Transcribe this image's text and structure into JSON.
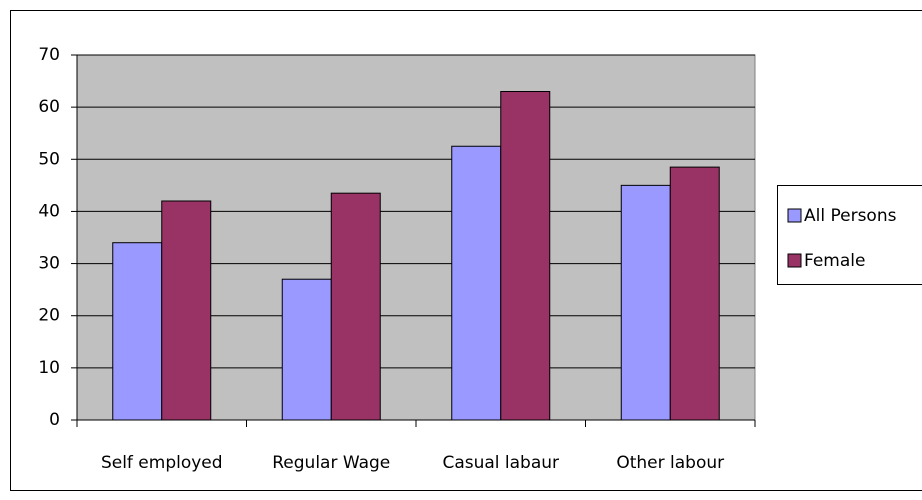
{
  "chart_data": {
    "type": "bar",
    "categories": [
      "Self employed",
      "Regular Wage",
      "Casual labaur",
      "Other labour"
    ],
    "series": [
      {
        "name": "All Persons",
        "color": "#9999ff",
        "values": [
          34,
          27,
          52.5,
          45
        ]
      },
      {
        "name": "Female",
        "color": "#993366",
        "values": [
          42,
          43.5,
          63,
          48.5
        ]
      }
    ],
    "ylim": [
      0,
      70
    ],
    "yticks": [
      0,
      10,
      20,
      30,
      40,
      50,
      60,
      70
    ],
    "grid": true,
    "legend": "right"
  }
}
